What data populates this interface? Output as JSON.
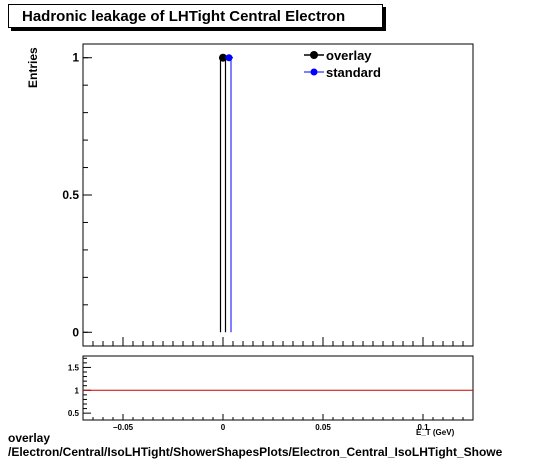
{
  "chart_data": [
    {
      "type": "scatter",
      "title": "Hadronic leakage of LHTight Central  Electron",
      "ylabel": "Entries",
      "xlabel": "E_T (GeV)",
      "xlim": [
        -0.07,
        0.125
      ],
      "ylim": [
        -0.05,
        1.05
      ],
      "y_ticks": [
        {
          "v": 0,
          "label": "0"
        },
        {
          "v": 0.5,
          "label": "0.5"
        },
        {
          "v": 1,
          "label": "1"
        }
      ],
      "legend_position": "top-right",
      "grid": false,
      "series": [
        {
          "name": "overlay",
          "color": "#000000",
          "points": [
            {
              "x": 0.0,
              "y": 1
            }
          ]
        },
        {
          "name": "standard",
          "color": "#0000ff",
          "points": [
            {
              "x": 0.003,
              "y": 1
            }
          ]
        }
      ]
    },
    {
      "type": "line",
      "title": "",
      "ylabel": "",
      "xlabel": "E_T (GeV)",
      "xlim": [
        -0.07,
        0.125
      ],
      "ylim": [
        0.35,
        1.75
      ],
      "y_ticks": [
        {
          "v": 0.5,
          "label": "0.5"
        },
        {
          "v": 1,
          "label": "1"
        },
        {
          "v": 1.5,
          "label": "1.5"
        }
      ],
      "x_ticks": [
        {
          "v": -0.05,
          "label": "−0.05"
        },
        {
          "v": 0,
          "label": "0"
        },
        {
          "v": 0.05,
          "label": "0.05"
        },
        {
          "v": 0.1,
          "label": "0.1"
        }
      ],
      "reference_line": {
        "y": 1,
        "color": "#cc0000"
      },
      "series": []
    }
  ],
  "footer": {
    "line1": "overlay",
    "line2": "/Electron/Central/IsoLHTight/ShowerShapesPlots/Electron_Central_IsoLHTight_Showe"
  }
}
